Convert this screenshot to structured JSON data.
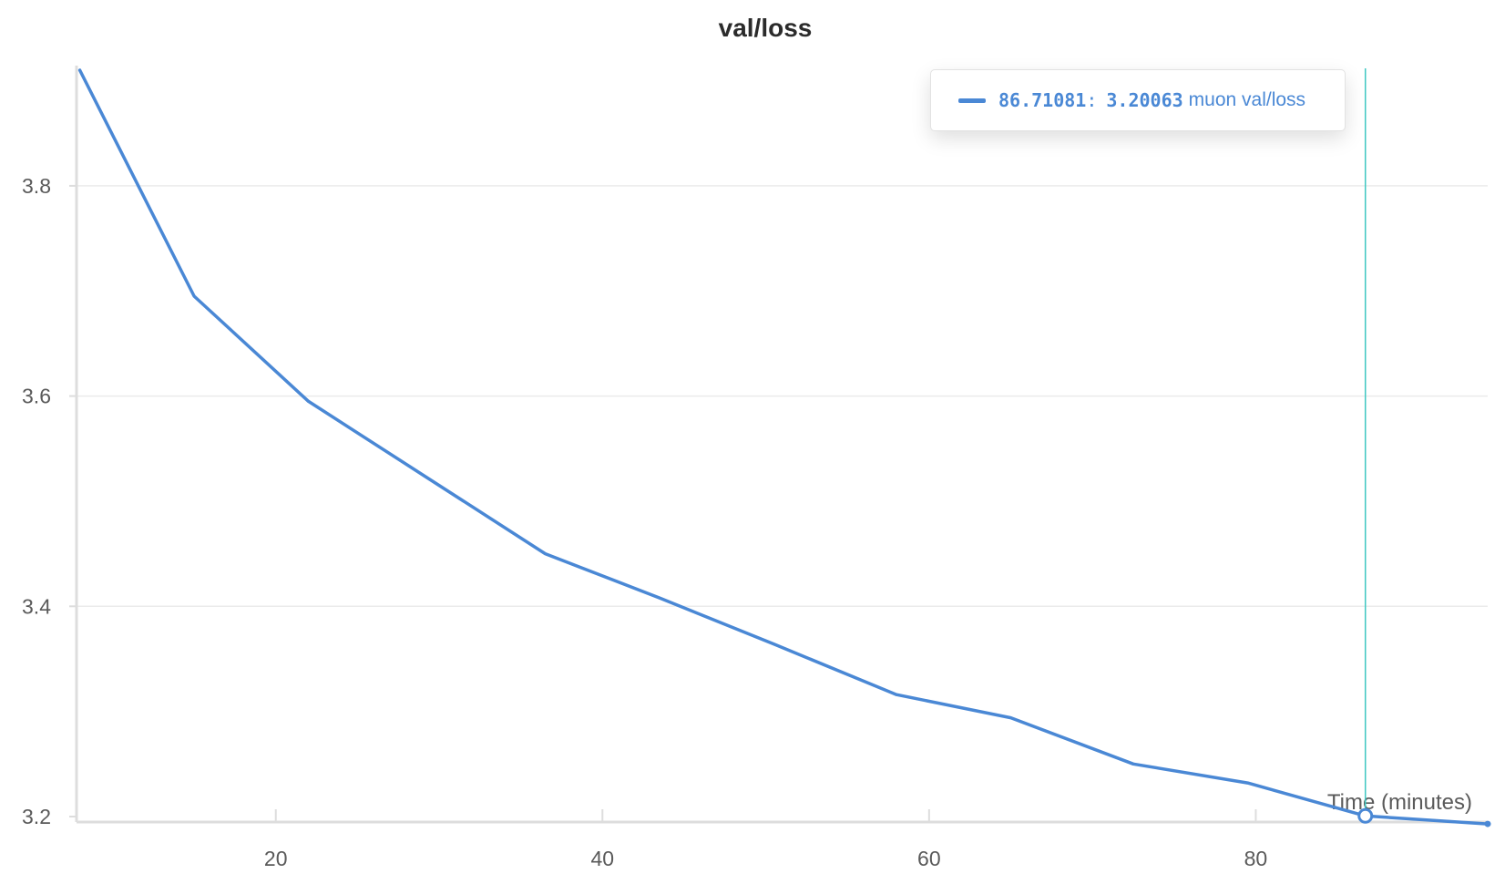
{
  "chart_data": {
    "type": "line",
    "title": "val/loss",
    "xlabel": "Time (minutes)",
    "ylabel": "",
    "xlim": [
      7.8,
      94.2
    ],
    "ylim": [
      3.2,
      3.91
    ],
    "x_ticks": [
      20,
      40,
      60,
      80
    ],
    "y_ticks": [
      3.2,
      3.4,
      3.6,
      3.8
    ],
    "grid": "horizontal",
    "colors": {
      "line": "#4a88d5",
      "crosshair": "#3fc8c2",
      "grid": "#ebebeb",
      "axis": "#dddddd"
    },
    "series": [
      {
        "name": "muon val/loss",
        "x": [
          8.0,
          15.0,
          22.0,
          29.0,
          36.5,
          43.5,
          50.5,
          58.0,
          65.0,
          72.5,
          79.5,
          86.71081,
          94.2
        ],
        "values": [
          3.91,
          3.695,
          3.595,
          3.525,
          3.45,
          3.408,
          3.364,
          3.316,
          3.294,
          3.25,
          3.232,
          3.20063,
          3.193
        ]
      }
    ],
    "hover": {
      "x": "86.71081",
      "y": "3.20063",
      "series": "muon val/loss",
      "separator": ":"
    }
  }
}
